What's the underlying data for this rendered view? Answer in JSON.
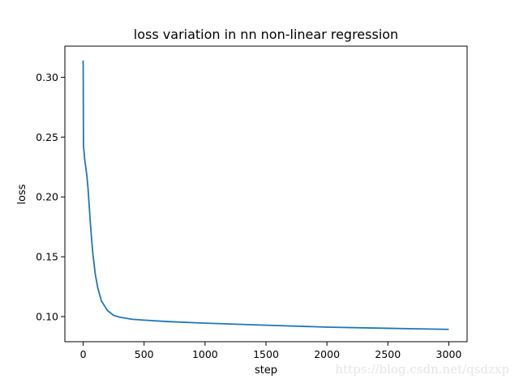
{
  "watermark": "https://blog.csdn.net/qsdzxp",
  "chart_data": {
    "type": "line",
    "title": "loss variation in nn non-linear regression",
    "xlabel": "step",
    "ylabel": "loss",
    "xlim": [
      -150,
      3150
    ],
    "ylim": [
      0.079,
      0.326
    ],
    "xticks": [
      0,
      500,
      1000,
      1500,
      2000,
      2500,
      3000
    ],
    "yticks": [
      0.1,
      0.15,
      0.2,
      0.25,
      0.3
    ],
    "ytick_labels": [
      "0.10",
      "0.15",
      "0.20",
      "0.25",
      "0.30"
    ],
    "grid": false,
    "line_color": "#1f77b4",
    "series": [
      {
        "x": [
          0,
          1,
          2,
          3,
          5,
          8,
          12,
          20,
          30,
          40,
          50,
          60,
          70,
          80,
          100,
          120,
          150,
          200,
          250,
          300,
          400,
          500,
          700,
          1000,
          1500,
          2000,
          2500,
          3000
        ],
        "y": [
          0.314,
          0.29,
          0.255,
          0.242,
          0.24,
          0.237,
          0.232,
          0.226,
          0.218,
          0.207,
          0.192,
          0.177,
          0.164,
          0.152,
          0.135,
          0.124,
          0.113,
          0.105,
          0.101,
          0.0995,
          0.0978,
          0.097,
          0.0958,
          0.0945,
          0.0928,
          0.0912,
          0.0902,
          0.0893
        ]
      }
    ]
  }
}
